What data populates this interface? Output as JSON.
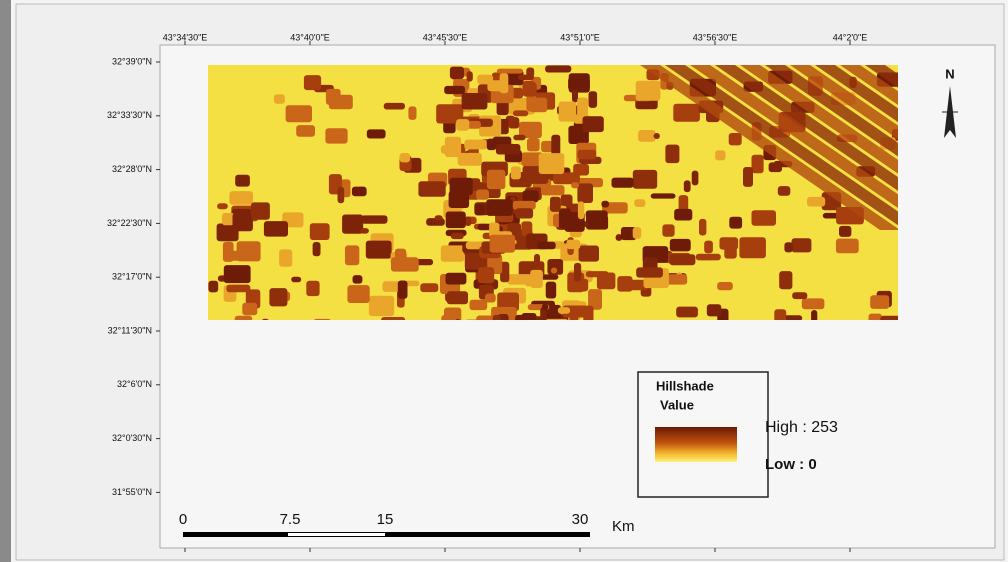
{
  "map": {
    "x_ticks": [
      "43°34'30\"E",
      "43°40'0\"E",
      "43°45'30\"E",
      "43°51'0\"E",
      "43°56'30\"E",
      "44°2'0\"E"
    ],
    "y_ticks": [
      "32°39'0\"N",
      "32°33'30\"N",
      "32°28'0\"N",
      "32°22'30\"N",
      "32°17'0\"N",
      "32°11'30\"N",
      "32°6'0\"N",
      "32°0'30\"N",
      "31°55'0\"N"
    ],
    "north": "N",
    "legend": {
      "title": "Hillshade",
      "subtitle": "Value",
      "high": "High : 253",
      "low": "Low : 0"
    },
    "scale_bar": {
      "labels": [
        "0",
        "7.5",
        "15",
        "30"
      ],
      "unit": "Km"
    }
  }
}
